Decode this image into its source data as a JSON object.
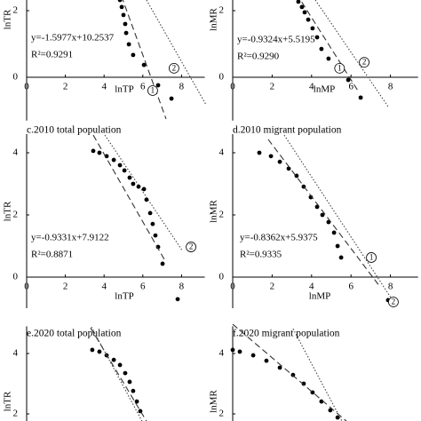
{
  "chart_data": [
    {
      "type": "scatter",
      "xlabel": "lnTP",
      "ylabel": "lnTR",
      "equation": "y=-1.5977x+10.2537",
      "r2": "R²=0.9291",
      "xlim": [
        0,
        9.2
      ],
      "ylim": [
        -1.3,
        4.6
      ],
      "xticks": [
        0,
        2,
        4,
        6,
        8
      ],
      "yticks": [
        0,
        2
      ],
      "series": [
        {
          "style": "points",
          "color": "#000000",
          "x": [
            4.82,
            4.91,
            5.0,
            5.09,
            5.14,
            5.28,
            5.5,
            6.06,
            6.79,
            7.48
          ],
          "values": [
            2.32,
            2.11,
            1.87,
            1.6,
            1.33,
            0.99,
            0.67,
            0.37,
            -0.24,
            -0.64
          ]
        },
        {
          "style": "dashed",
          "color": "#333333",
          "x": [
            4.9,
            7.2
          ],
          "values": [
            2.43,
            -1.25
          ]
        },
        {
          "style": "dotted",
          "color": "#444444",
          "x": [
            6.19,
            9.27
          ],
          "values": [
            2.32,
            -0.83
          ]
        }
      ],
      "markers": [
        {
          "label": "1",
          "x": 6.51,
          "y": -0.4
        },
        {
          "label": "2",
          "x": 7.61,
          "y": 0.27
        }
      ]
    },
    {
      "type": "scatter",
      "xlabel": "lnMP",
      "ylabel": "lnMR",
      "equation": "y=-0.9324x+5.5195",
      "r2": "R²=0.9290",
      "xlim": [
        0,
        9.4
      ],
      "ylim": [
        -1.3,
        4.6
      ],
      "xticks": [
        0,
        2,
        4,
        6,
        8
      ],
      "yticks": [
        0,
        2
      ],
      "series": [
        {
          "style": "points",
          "color": "#000000",
          "x": [
            3.33,
            3.51,
            3.65,
            3.83,
            4.05,
            4.28,
            4.5,
            4.86,
            5.86,
            6.49
          ],
          "values": [
            2.27,
            2.11,
            1.95,
            1.73,
            1.47,
            1.2,
            0.85,
            0.56,
            -0.08,
            -0.61
          ]
        },
        {
          "style": "dashed",
          "color": "#333333",
          "x": [
            3.5,
            6.4
          ],
          "values": [
            2.26,
            -0.45
          ]
        },
        {
          "style": "dotted",
          "color": "#444444",
          "x": [
            4.19,
            7.88
          ],
          "values": [
            2.32,
            -0.88
          ]
        }
      ],
      "markers": [
        {
          "label": "1",
          "x": 5.42,
          "y": 0.27
        },
        {
          "label": "2",
          "x": 6.67,
          "y": 0.45
        }
      ]
    },
    {
      "type": "scatter",
      "title": "c.2010 total population",
      "xlabel": "lnTP",
      "ylabel": "lnTR",
      "equation": "y=-0.9331x+7.9122",
      "r2": "R²=0.8871",
      "xlim": [
        0,
        9.2
      ],
      "ylim": [
        -1,
        4.6
      ],
      "xticks": [
        0,
        2,
        4,
        6,
        8
      ],
      "yticks": [
        0,
        2,
        4
      ],
      "series": [
        {
          "style": "points",
          "color": "#000000",
          "x": [
            3.44,
            3.76,
            4.13,
            4.5,
            4.82,
            5.05,
            5.32,
            5.5,
            5.78,
            6.06,
            6.19,
            6.38,
            6.51,
            6.65,
            6.79,
            7.02,
            7.8
          ],
          "values": [
            4.06,
            4.0,
            3.89,
            3.77,
            3.6,
            3.43,
            3.2,
            3.0,
            2.91,
            2.83,
            2.49,
            2.06,
            1.71,
            1.34,
            0.97,
            0.43,
            -0.71
          ]
        },
        {
          "style": "dashed",
          "color": "#333333",
          "x": [
            3.44,
            7.11
          ],
          "values": [
            4.57,
            0.57
          ]
        },
        {
          "style": "dotted",
          "color": "#444444",
          "x": [
            4.04,
            8.03
          ],
          "values": [
            4.57,
            0.86
          ]
        }
      ],
      "markers": [
        {
          "label": "2",
          "x": 8.49,
          "y": 0.97
        }
      ]
    },
    {
      "type": "scatter",
      "title": "d.2010 migrant population",
      "xlabel": "lnMP",
      "ylabel": "lnMR",
      "equation": "y=-0.8362x+5.9375",
      "r2": "R²=0.9335",
      "xlim": [
        0,
        9.4
      ],
      "ylim": [
        -1,
        4.6
      ],
      "xticks": [
        0,
        2,
        4,
        6,
        8
      ],
      "yticks": [
        0,
        2,
        4
      ],
      "series": [
        {
          "style": "points",
          "color": "#000000",
          "x": [
            1.35,
            1.94,
            2.39,
            2.84,
            3.24,
            3.6,
            3.96,
            4.28,
            4.55,
            4.86,
            5.14,
            5.32,
            5.5,
            7.88
          ],
          "values": [
            4.0,
            3.89,
            3.71,
            3.49,
            3.26,
            2.91,
            2.57,
            2.26,
            2.0,
            1.77,
            1.43,
            1.0,
            0.63,
            -0.74
          ]
        },
        {
          "style": "dashed",
          "color": "#333333",
          "x": [
            1.8,
            7.4
          ],
          "values": [
            4.43,
            -0.25
          ]
        },
        {
          "style": "dotted",
          "color": "#444444",
          "x": [
            2.61,
            8.02
          ],
          "values": [
            4.57,
            -0.66
          ]
        }
      ],
      "markers": [
        {
          "label": "1",
          "x": 7.03,
          "y": 0.63
        },
        {
          "label": "2",
          "x": 8.15,
          "y": -0.8
        }
      ]
    },
    {
      "type": "scatter",
      "title": "e.2020 total population",
      "ylabel": "lnTR",
      "xlim": [
        0,
        9.2
      ],
      "ylim": [
        1.7,
        4.9
      ],
      "yticks": [
        2,
        4
      ],
      "series": [
        {
          "style": "points",
          "color": "#000000",
          "x": [
            3.39,
            3.76,
            4.13,
            4.5,
            4.82,
            5.09,
            5.32,
            5.5,
            5.69,
            5.87
          ],
          "values": [
            4.12,
            4.06,
            3.94,
            3.79,
            3.62,
            3.35,
            3.06,
            2.76,
            2.41,
            2.09
          ]
        },
        {
          "style": "dashed",
          "color": "#333333",
          "x": [
            3.3,
            6.19
          ],
          "values": [
            4.85,
            1.76
          ]
        },
        {
          "style": "dotted",
          "color": "#444444",
          "x": [
            3.35,
            5.96
          ],
          "values": [
            4.88,
            1.76
          ]
        }
      ]
    },
    {
      "type": "scatter",
      "title": "f.2020 migrant population",
      "ylabel": "lnMR",
      "xlim": [
        0,
        9.4
      ],
      "ylim": [
        1.7,
        4.9
      ],
      "yticks": [
        2,
        4
      ],
      "series": [
        {
          "style": "points",
          "color": "#000000",
          "x": [
            0.0,
            0.36,
            1.04,
            1.71,
            2.39,
            3.06,
            3.6,
            4.05,
            4.5,
            4.95,
            5.32
          ],
          "values": [
            4.12,
            4.06,
            3.94,
            3.76,
            3.53,
            3.29,
            3.0,
            2.71,
            2.41,
            2.12,
            1.88
          ]
        },
        {
          "style": "dashed",
          "color": "#333333",
          "x": [
            0.0,
            5.77
          ],
          "values": [
            4.97,
            1.76
          ]
        },
        {
          "style": "dotted",
          "color": "#444444",
          "x": [
            3.06,
            5.54
          ],
          "values": [
            4.82,
            1.76
          ]
        }
      ]
    }
  ]
}
